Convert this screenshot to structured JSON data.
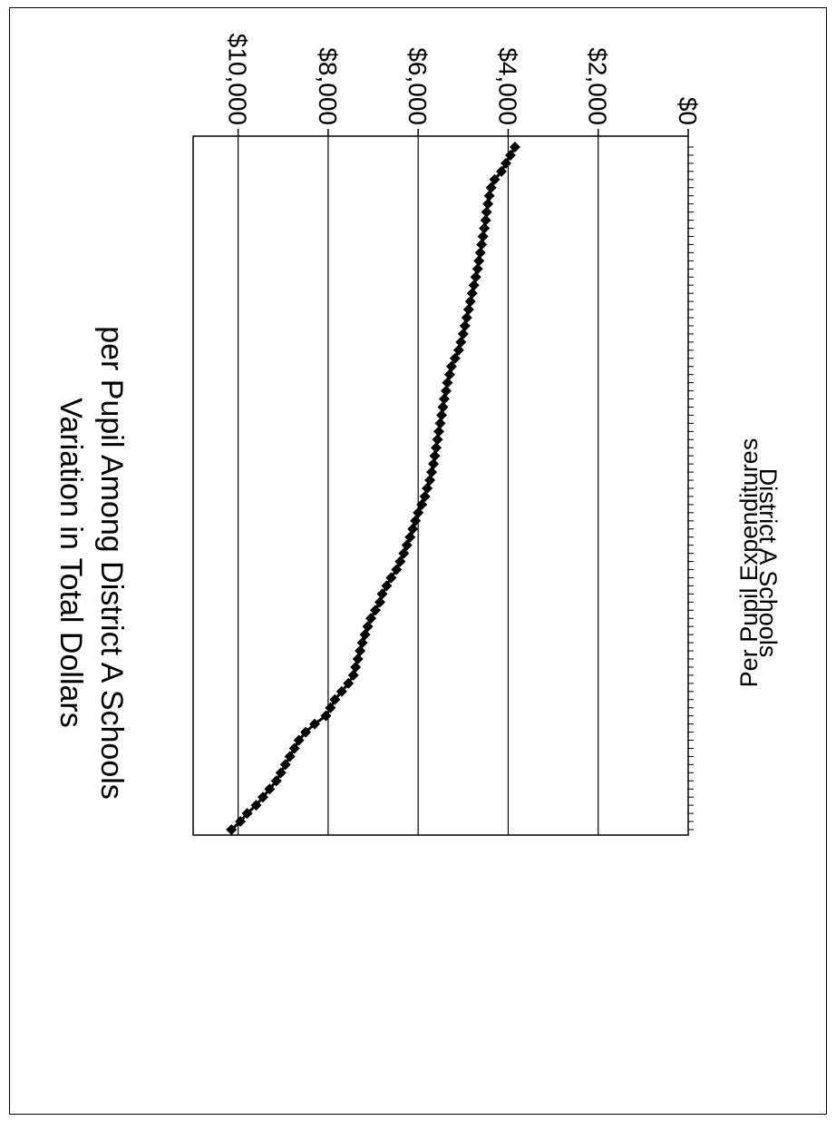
{
  "chart_data": {
    "type": "line",
    "title": "Variation in Total Dollars per Pupil Among District A Schools",
    "title_lines": [
      "Variation in Total Dollars",
      "per Pupil Among District A Schools"
    ],
    "xlabel": "District A Schools",
    "ylabel": "Per Pupil Expenditures",
    "ylim": [
      0,
      11000
    ],
    "yticks": [
      0,
      2000,
      4000,
      6000,
      8000,
      10000
    ],
    "ytick_labels": [
      "$0",
      "$2,000",
      "$4,000",
      "$6,000",
      "$8,000",
      "$10,000"
    ],
    "grid": true,
    "marker": "diamond",
    "series": [
      {
        "values": [
          3850,
          3950,
          4050,
          4150,
          4300,
          4380,
          4420,
          4450,
          4480,
          4500,
          4530,
          4560,
          4590,
          4620,
          4650,
          4680,
          4720,
          4760,
          4800,
          4840,
          4880,
          4920,
          4960,
          5000,
          5050,
          5100,
          5180,
          5260,
          5300,
          5350,
          5380,
          5420,
          5450,
          5480,
          5510,
          5540,
          5570,
          5600,
          5630,
          5660,
          5700,
          5740,
          5800,
          5850,
          5920,
          6000,
          6060,
          6120,
          6180,
          6250,
          6320,
          6400,
          6480,
          6600,
          6700,
          6800,
          6850,
          6950,
          7050,
          7120,
          7180,
          7240,
          7290,
          7340,
          7390,
          7440,
          7550,
          7700,
          7850,
          7950,
          8050,
          8300,
          8500,
          8650,
          8750,
          8850,
          8950,
          9050,
          9150,
          9300,
          9450,
          9600,
          9800,
          9950,
          10150
        ]
      }
    ]
  }
}
